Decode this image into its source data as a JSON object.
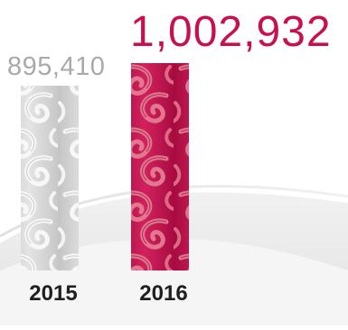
{
  "chart_data": {
    "type": "bar",
    "categories": [
      "2015",
      "2016"
    ],
    "values": [
      895410,
      1002932
    ],
    "value_labels": [
      "895,410",
      "1,002,932"
    ],
    "colors": {
      "bar_2015": "#d3d3d3",
      "bar_2016": "#c8104e",
      "label_2015": "#a9a9a9",
      "label_2016": "#c8104e",
      "category_text": "#1f1f1f",
      "wave": "#e8e8e8"
    },
    "style": "filigree-pattern bars",
    "grid": false,
    "legend": "none"
  }
}
